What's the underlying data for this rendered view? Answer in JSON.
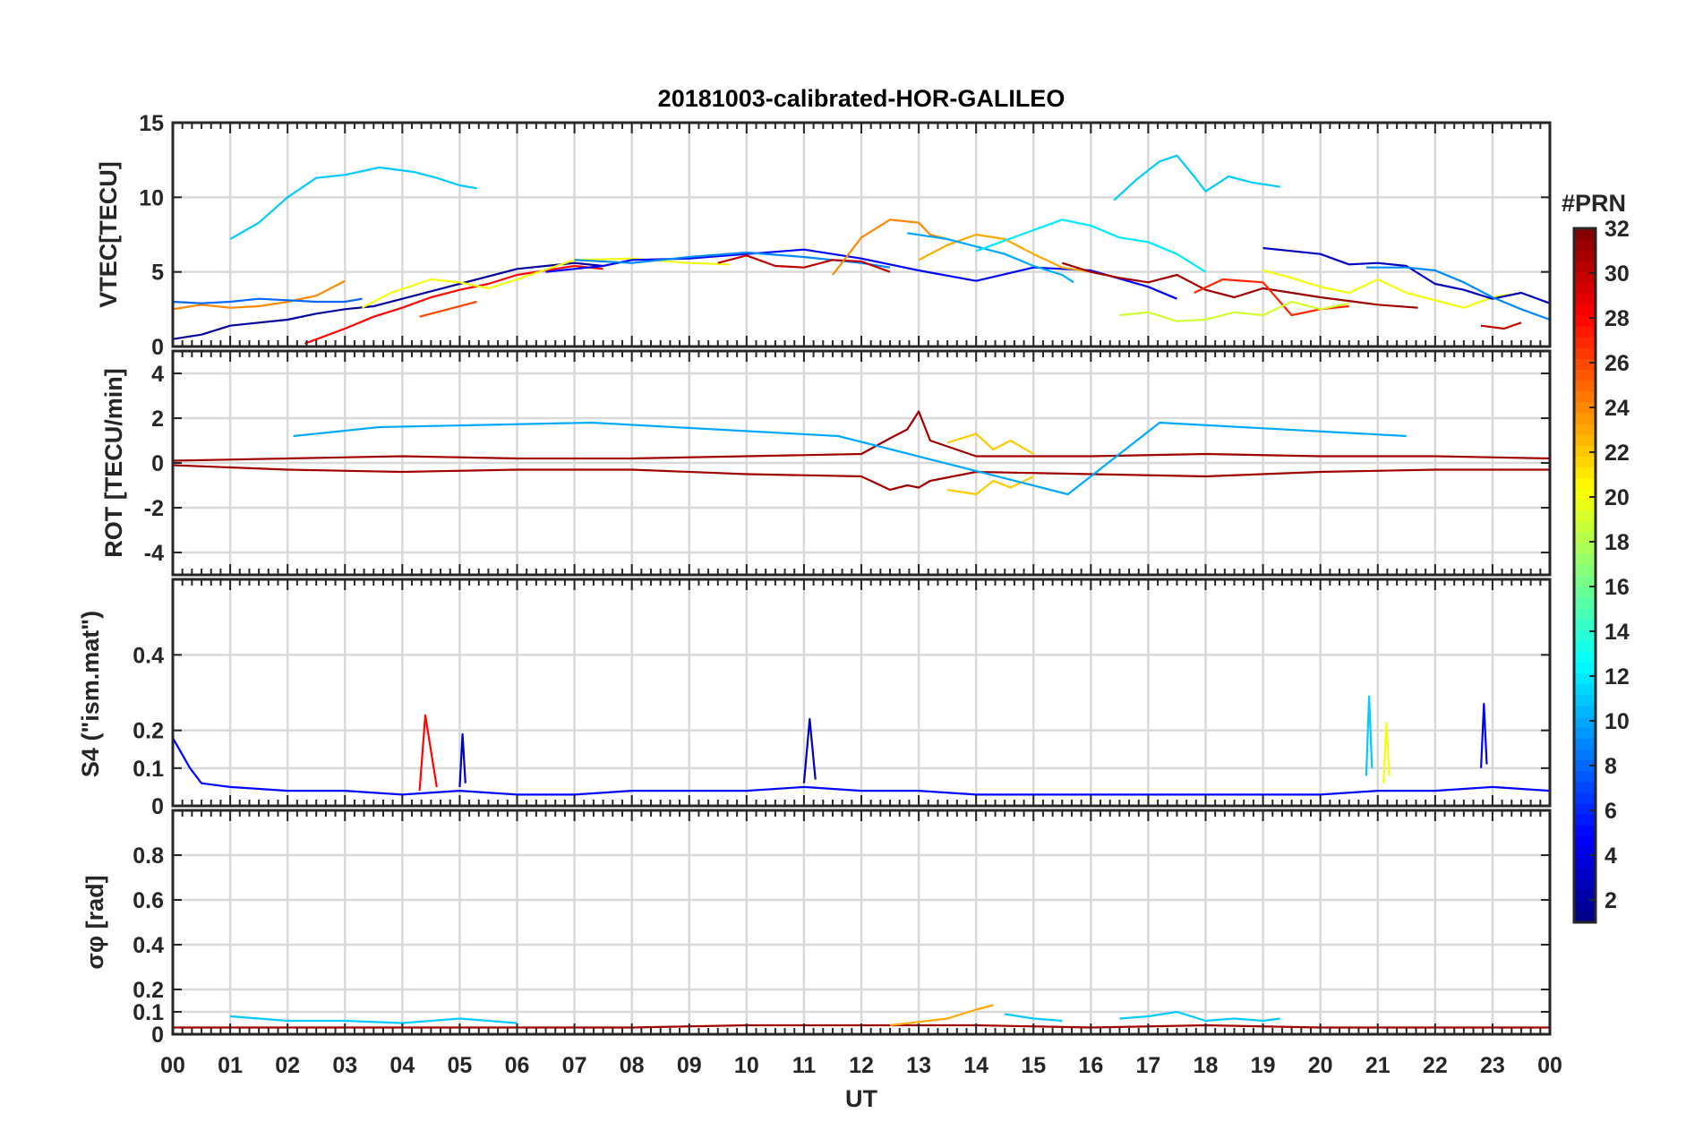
{
  "chart_data": {
    "type": "line",
    "title": "20181003-calibrated-HOR-GALILEO",
    "xlabel": "UT",
    "x_tick_labels": [
      "00",
      "01",
      "02",
      "03",
      "04",
      "05",
      "06",
      "07",
      "08",
      "09",
      "10",
      "11",
      "12",
      "13",
      "14",
      "15",
      "16",
      "17",
      "18",
      "19",
      "20",
      "21",
      "22",
      "23",
      "00"
    ],
    "xlim_hours": [
      0,
      24
    ],
    "grid": true,
    "colorbar": {
      "title": "#PRN",
      "colormap": "jet",
      "range": [
        1,
        32
      ],
      "ticks": [
        2,
        4,
        6,
        8,
        10,
        12,
        14,
        16,
        18,
        20,
        22,
        24,
        26,
        28,
        30,
        32
      ],
      "tick_labels": [
        "2",
        "4",
        "6",
        "8",
        "10",
        "12",
        "14",
        "16",
        "18",
        "20",
        "22",
        "24",
        "26",
        "28",
        "30",
        "32"
      ],
      "placement": "right"
    },
    "panels": [
      {
        "id": "vtec",
        "ylabel": "VTEC[TECU]",
        "ylim": [
          0,
          15
        ],
        "yticks": [
          0,
          5,
          10,
          15
        ],
        "ytick_labels": [
          "0",
          "5",
          "10",
          "15"
        ],
        "series": [
          {
            "prn": 11,
            "x": [
              1.0,
              1.5,
              2.0,
              2.5,
              3.0,
              3.6,
              4.2,
              4.6,
              5.0,
              5.3
            ],
            "y": [
              7.2,
              8.3,
              10.0,
              11.3,
              11.5,
              12.0,
              11.7,
              11.3,
              10.8,
              10.6
            ]
          },
          {
            "prn": 11,
            "x": [
              16.4,
              16.8,
              17.2,
              17.5,
              17.8,
              18.0,
              18.4,
              18.8,
              19.3
            ],
            "y": [
              9.8,
              11.2,
              12.4,
              12.8,
              11.4,
              10.4,
              11.4,
              11.0,
              10.7
            ]
          },
          {
            "prn": 2,
            "x": [
              0.0,
              0.5,
              1.0,
              1.5,
              2.0,
              2.5,
              3.0,
              3.5,
              4.0,
              5.0,
              6.0,
              7.0,
              7.5
            ],
            "y": [
              0.5,
              0.8,
              1.4,
              1.6,
              1.8,
              2.2,
              2.5,
              2.7,
              3.2,
              4.2,
              5.2,
              5.6,
              5.4
            ]
          },
          {
            "prn": 24,
            "x": [
              0.0,
              0.5,
              1.0,
              1.5,
              2.0,
              2.5,
              3.0
            ],
            "y": [
              2.5,
              2.8,
              2.6,
              2.7,
              3.0,
              3.4,
              4.4
            ]
          },
          {
            "prn": 8,
            "x": [
              0.0,
              0.5,
              1.0,
              1.5,
              2.0,
              2.5,
              3.0,
              3.3
            ],
            "y": [
              3.0,
              2.9,
              3.0,
              3.2,
              3.1,
              3.0,
              3.0,
              3.2
            ]
          },
          {
            "prn": 28,
            "x": [
              2.3,
              3.0,
              3.5,
              4.0,
              4.5,
              5.0,
              5.5,
              6.0,
              7.0,
              7.5
            ],
            "y": [
              0.2,
              1.2,
              2.0,
              2.6,
              3.3,
              3.8,
              4.2,
              4.8,
              5.4,
              5.2
            ]
          },
          {
            "prn": 20,
            "x": [
              3.3,
              3.8,
              4.5,
              5.0,
              5.5,
              6.0,
              7.0,
              8.0,
              9.0,
              9.7
            ],
            "y": [
              2.6,
              3.6,
              4.5,
              4.3,
              3.9,
              4.5,
              5.8,
              5.9,
              5.6,
              5.5
            ]
          },
          {
            "prn": 26,
            "x": [
              4.3,
              4.8,
              5.3
            ],
            "y": [
              2.0,
              2.5,
              3.0
            ]
          },
          {
            "prn": 5,
            "x": [
              6.5,
              7.0,
              7.5,
              8.0,
              9.0,
              10.0,
              11.0,
              12.0,
              13.0,
              14.0,
              15.0,
              16.0,
              17.0,
              17.5
            ],
            "y": [
              5.0,
              5.2,
              5.4,
              5.8,
              5.9,
              6.2,
              6.5,
              5.9,
              5.1,
              4.4,
              5.3,
              5.1,
              4.0,
              3.2
            ]
          },
          {
            "prn": 9,
            "x": [
              7.0,
              8.0,
              9.0,
              10.0,
              11.0,
              12.0,
              12.5
            ],
            "y": [
              5.8,
              5.6,
              6.0,
              6.3,
              6.0,
              5.6,
              5.3
            ]
          },
          {
            "prn": 30,
            "x": [
              9.5,
              10.0,
              10.5,
              11.0,
              11.5,
              12.0,
              12.5
            ],
            "y": [
              5.6,
              6.1,
              5.4,
              5.3,
              5.8,
              5.7,
              5.0
            ]
          },
          {
            "prn": 24,
            "x": [
              11.5,
              12.0,
              12.5,
              13.0,
              13.2,
              13.5
            ],
            "y": [
              4.8,
              7.3,
              8.5,
              8.3,
              7.5,
              7.2
            ]
          },
          {
            "prn": 23,
            "x": [
              13.0,
              13.5,
              14.0,
              14.5,
              15.0,
              15.5,
              16.0
            ],
            "y": [
              5.8,
              6.8,
              7.5,
              7.2,
              6.2,
              5.3,
              5.0
            ]
          },
          {
            "prn": 10,
            "x": [
              12.8,
              13.5,
              14.0,
              14.5,
              15.0,
              15.5,
              15.7
            ],
            "y": [
              7.6,
              7.2,
              6.7,
              6.2,
              5.4,
              4.8,
              4.3
            ]
          },
          {
            "prn": 12,
            "x": [
              14.0,
              14.5,
              15.0,
              15.5,
              16.0,
              16.5,
              17.0,
              17.5,
              18.0
            ],
            "y": [
              6.4,
              7.1,
              7.8,
              8.5,
              8.1,
              7.3,
              7.0,
              6.2,
              5.0
            ]
          },
          {
            "prn": 31,
            "x": [
              15.5,
              16.0,
              16.5,
              17.0,
              17.5,
              18.0,
              18.5,
              19.0,
              20.0,
              21.0,
              21.7
            ],
            "y": [
              5.6,
              5.0,
              4.6,
              4.3,
              4.8,
              3.8,
              3.3,
              3.9,
              3.3,
              2.8,
              2.6
            ]
          },
          {
            "prn": 27,
            "x": [
              17.8,
              18.3,
              19.0,
              19.5,
              20.0,
              20.5
            ],
            "y": [
              3.6,
              4.5,
              4.3,
              2.1,
              2.5,
              2.7
            ]
          },
          {
            "prn": 19,
            "x": [
              16.5,
              17.0,
              17.5,
              18.0,
              18.5,
              19.0,
              19.5,
              20.0,
              20.5
            ],
            "y": [
              2.1,
              2.3,
              1.7,
              1.8,
              2.3,
              2.1,
              3.0,
              2.5,
              2.9
            ]
          },
          {
            "prn": 20,
            "x": [
              19.0,
              19.5,
              20.0,
              20.5,
              21.0,
              21.5,
              22.0,
              22.5,
              23.0,
              23.5
            ],
            "y": [
              5.1,
              4.6,
              4.0,
              3.6,
              4.5,
              3.6,
              3.1,
              2.6,
              3.3,
              3.6
            ]
          },
          {
            "prn": 3,
            "x": [
              19.0,
              19.5,
              20.0,
              20.5,
              21.0,
              21.5,
              22.0,
              22.5,
              23.0,
              23.5,
              24.0
            ],
            "y": [
              6.6,
              6.4,
              6.2,
              5.5,
              5.6,
              5.4,
              4.2,
              3.8,
              3.2,
              3.6,
              2.9
            ]
          },
          {
            "prn": 9,
            "x": [
              20.8,
              21.5,
              22.0,
              22.5,
              23.0,
              23.5,
              24.0
            ],
            "y": [
              5.3,
              5.3,
              5.1,
              4.3,
              3.3,
              2.5,
              1.8
            ]
          },
          {
            "prn": 30,
            "x": [
              22.8,
              23.2,
              23.5
            ],
            "y": [
              1.4,
              1.2,
              1.6
            ]
          }
        ]
      },
      {
        "id": "rot",
        "ylabel": "ROT [TECU/min]",
        "ylim": [
          -5,
          5
        ],
        "yticks": [
          -4,
          -2,
          0,
          2,
          4
        ],
        "ytick_labels": [
          "-4",
          "-2",
          "0",
          "2",
          "4"
        ],
        "series": [
          {
            "prn": 31,
            "x": [
              0,
              2,
              4,
              6,
              8,
              10,
              12,
              12.5,
              12.8,
              13.0,
              13.2,
              14,
              16,
              18,
              20,
              22,
              24
            ],
            "y": [
              0.1,
              0.2,
              0.3,
              0.2,
              0.2,
              0.3,
              0.4,
              1.1,
              1.5,
              2.3,
              1.0,
              0.3,
              0.3,
              0.4,
              0.3,
              0.3,
              0.2
            ]
          },
          {
            "prn": 31,
            "x": [
              0,
              2,
              4,
              6,
              8,
              10,
              12,
              12.5,
              12.8,
              13.0,
              13.2,
              14,
              16,
              18,
              20,
              22,
              24
            ],
            "y": [
              -0.1,
              -0.3,
              -0.4,
              -0.3,
              -0.3,
              -0.5,
              -0.6,
              -1.2,
              -1.0,
              -1.1,
              -0.8,
              -0.4,
              -0.5,
              -0.6,
              -0.4,
              -0.3,
              -0.3
            ]
          },
          {
            "prn": 22,
            "x": [
              13.5,
              14.0,
              14.3,
              14.6,
              15.0
            ],
            "y": [
              0.9,
              1.3,
              0.6,
              1.0,
              0.4
            ]
          },
          {
            "prn": 22,
            "x": [
              13.5,
              14.0,
              14.3,
              14.6,
              15.0
            ],
            "y": [
              -1.2,
              -1.4,
              -0.8,
              -1.1,
              -0.6
            ]
          },
          {
            "prn": 10,
            "x": [
              2.1,
              3.6,
              7.3,
              11.6,
              15.6,
              17.2,
              21.5
            ],
            "y": [
              1.2,
              1.6,
              1.8,
              1.2,
              -1.4,
              1.8,
              1.2
            ]
          }
        ]
      },
      {
        "id": "s4",
        "ylabel": "S4 (\"ism.mat\")",
        "ylim": [
          0,
          0.6
        ],
        "yticks": [
          0,
          0.1,
          0.2,
          0.4
        ],
        "ytick_labels": [
          "0",
          "0.1",
          "0.2",
          "0.4"
        ],
        "series": [
          {
            "prn": 5,
            "x": [
              0,
              0.3,
              0.5,
              1,
              2,
              3,
              4,
              5,
              6,
              7,
              8,
              9,
              10,
              11,
              12,
              13,
              14,
              15,
              16,
              17,
              18,
              19,
              20,
              21,
              22,
              23,
              24
            ],
            "y": [
              0.18,
              0.1,
              0.06,
              0.05,
              0.04,
              0.04,
              0.03,
              0.04,
              0.03,
              0.03,
              0.04,
              0.04,
              0.04,
              0.05,
              0.04,
              0.04,
              0.03,
              0.03,
              0.03,
              0.03,
              0.03,
              0.03,
              0.03,
              0.04,
              0.04,
              0.05,
              0.04
            ]
          },
          {
            "prn": 28,
            "x": [
              4.3,
              4.4,
              4.6
            ],
            "y": [
              0.04,
              0.24,
              0.05
            ]
          },
          {
            "prn": 3,
            "x": [
              5.0,
              5.05,
              5.1
            ],
            "y": [
              0.05,
              0.19,
              0.06
            ]
          },
          {
            "prn": 3,
            "x": [
              11.0,
              11.1,
              11.2
            ],
            "y": [
              0.06,
              0.23,
              0.07
            ]
          },
          {
            "prn": 11,
            "x": [
              20.8,
              20.85,
              20.9
            ],
            "y": [
              0.08,
              0.29,
              0.1
            ]
          },
          {
            "prn": 5,
            "x": [
              22.8,
              22.85,
              22.9
            ],
            "y": [
              0.1,
              0.27,
              0.11
            ]
          },
          {
            "prn": 20,
            "x": [
              21.1,
              21.15,
              21.2
            ],
            "y": [
              0.06,
              0.22,
              0.08
            ]
          }
        ]
      },
      {
        "id": "sigma_phi",
        "ylabel": "σφ [rad]",
        "ylim": [
          0,
          1
        ],
        "yticks": [
          0,
          0.1,
          0.2,
          0.4,
          0.6,
          0.8
        ],
        "ytick_labels": [
          "0",
          "0.1",
          "0.2",
          "0.4",
          "0.6",
          "0.8"
        ],
        "series": [
          {
            "prn": 11,
            "x": [
              1,
              2,
              3,
              4,
              5,
              6
            ],
            "y": [
              0.08,
              0.06,
              0.06,
              0.05,
              0.07,
              0.05
            ]
          },
          {
            "prn": 31,
            "x": [
              0,
              4,
              8,
              10,
              12,
              14,
              16,
              18,
              20,
              22,
              24
            ],
            "y": [
              0.03,
              0.03,
              0.03,
              0.04,
              0.04,
              0.04,
              0.03,
              0.04,
              0.03,
              0.03,
              0.03
            ]
          },
          {
            "prn": 23,
            "x": [
              12.5,
              13.5,
              14.0,
              14.3
            ],
            "y": [
              0.04,
              0.07,
              0.11,
              0.13
            ]
          },
          {
            "prn": 11,
            "x": [
              14.5,
              15.0,
              15.5
            ],
            "y": [
              0.09,
              0.07,
              0.06
            ]
          },
          {
            "prn": 11,
            "x": [
              16.5,
              17.0,
              17.5,
              18.0,
              18.5,
              19.0,
              19.3
            ],
            "y": [
              0.07,
              0.08,
              0.1,
              0.06,
              0.07,
              0.06,
              0.07
            ]
          }
        ]
      }
    ]
  }
}
